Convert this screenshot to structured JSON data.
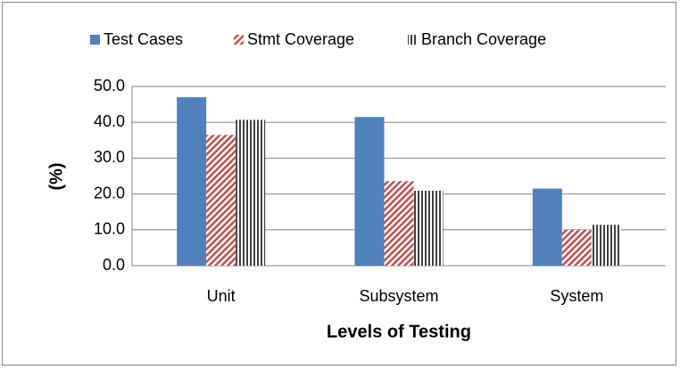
{
  "chart_data": {
    "type": "bar",
    "xlabel": "Levels of Testing",
    "ylabel": "(%)",
    "categories": [
      "Unit",
      "Subsystem",
      "System"
    ],
    "series": [
      {
        "name": "Test Cases",
        "color": "#4f81bd",
        "values": [
          47.0,
          41.5,
          21.5
        ]
      },
      {
        "name": "Stmt Coverage",
        "color": "#c0504d",
        "values": [
          36.5,
          23.6,
          10.0
        ]
      },
      {
        "name": "Branch Coverage",
        "color": "#404040",
        "values": [
          40.7,
          20.9,
          11.4
        ]
      }
    ],
    "ylim": [
      0,
      50
    ],
    "yticks": [
      {
        "value": 0,
        "label": "0.0"
      },
      {
        "value": 10,
        "label": "10.0"
      },
      {
        "value": 20,
        "label": "20.0"
      },
      {
        "value": 30,
        "label": "30.0"
      },
      {
        "value": 40,
        "label": "40.0"
      },
      {
        "value": 50,
        "label": "50.0"
      }
    ],
    "grid": true,
    "legend": "top"
  }
}
